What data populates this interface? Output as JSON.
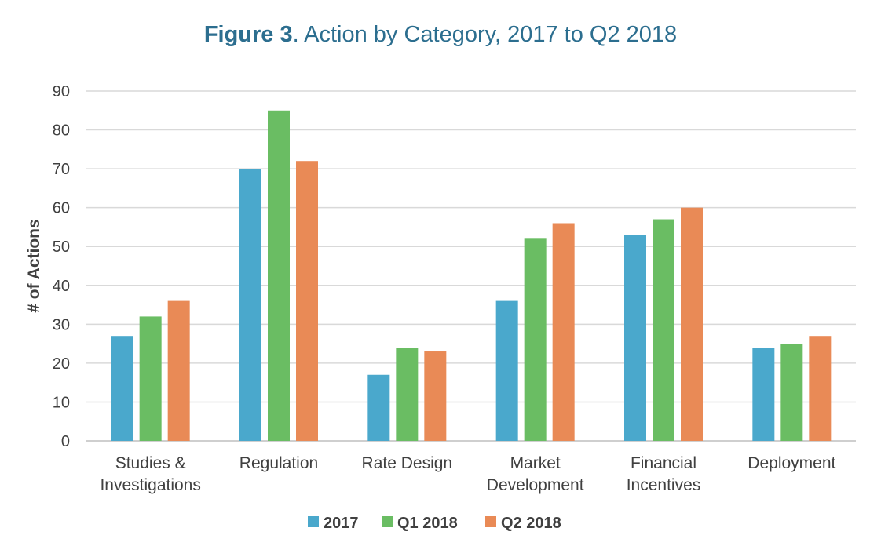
{
  "chart_data": {
    "type": "bar",
    "title_bold": "Figure 3",
    "title_rest": ". Action by Category, 2017 to Q2 2018",
    "xlabel": "",
    "ylabel": "# of Actions",
    "ylim": [
      0,
      90
    ],
    "yticks": [
      0,
      10,
      20,
      30,
      40,
      50,
      60,
      70,
      80,
      90
    ],
    "grid": true,
    "legend_position": "bottom",
    "categories": [
      [
        "Studies &",
        "Investigations"
      ],
      [
        "Regulation"
      ],
      [
        "Rate Design"
      ],
      [
        "Market",
        "Development"
      ],
      [
        "Financial",
        "Incentives"
      ],
      [
        "Deployment"
      ]
    ],
    "series": [
      {
        "name": "2017",
        "color": "#4aa8cc",
        "values": [
          27,
          70,
          17,
          36,
          53,
          24
        ]
      },
      {
        "name": "Q1 2018",
        "color": "#6abd63",
        "values": [
          32,
          85,
          24,
          52,
          57,
          25
        ]
      },
      {
        "name": "Q2 2018",
        "color": "#e98a56",
        "values": [
          36,
          72,
          23,
          56,
          60,
          27
        ]
      }
    ],
    "colors": {
      "title": "#2c6e8f",
      "gridline": "#d9d9d9",
      "axis_text": "#404040"
    }
  }
}
